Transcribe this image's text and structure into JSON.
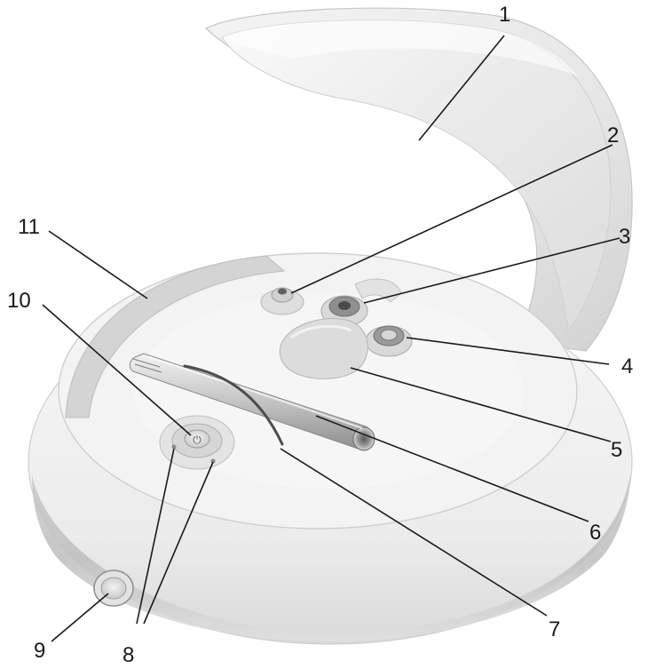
{
  "callouts": [
    {
      "id": "1",
      "label": "1"
    },
    {
      "id": "2",
      "label": "2"
    },
    {
      "id": "3",
      "label": "3"
    },
    {
      "id": "4",
      "label": "4"
    },
    {
      "id": "5",
      "label": "5"
    },
    {
      "id": "6",
      "label": "6"
    },
    {
      "id": "7",
      "label": "7"
    },
    {
      "id": "8",
      "label": "8"
    },
    {
      "id": "9",
      "label": "9"
    },
    {
      "id": "10",
      "label": "10"
    },
    {
      "id": "11",
      "label": "11"
    }
  ],
  "power_symbol": "⏻"
}
